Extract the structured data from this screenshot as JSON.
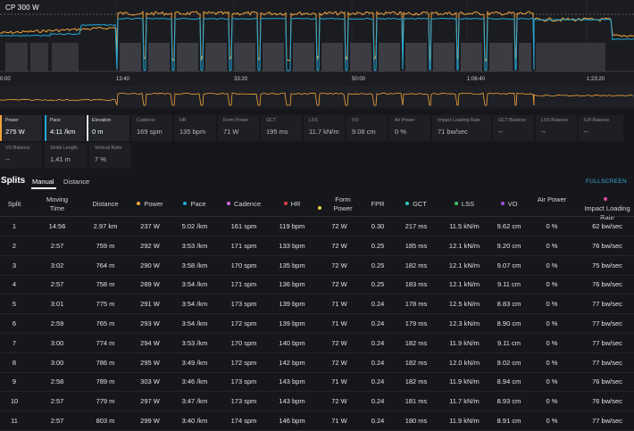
{
  "chart": {
    "cp_label": "CP 300 W",
    "time_ticks": [
      "0:00",
      "13:40",
      "33:20",
      "50:00",
      "1:06:40",
      "1:23:20"
    ],
    "colors": {
      "power": "#f0a43a",
      "pace": "#22a8d6",
      "ghost": "#4a4c52"
    }
  },
  "metrics": [
    {
      "label": "Power",
      "value": "275 W",
      "color": "#f0a43a",
      "active": true
    },
    {
      "label": "Pace",
      "value": "4:11 /km",
      "color": "#22a8d6",
      "active": true
    },
    {
      "label": "Elevation",
      "value": "0 m",
      "color": "#e6e6e6",
      "active": true
    },
    {
      "label": "Cadence",
      "value": "169 spm",
      "active": false
    },
    {
      "label": "HR",
      "value": "135 bpm",
      "active": false
    },
    {
      "label": "Form Power",
      "value": "71 W",
      "active": false
    },
    {
      "label": "GCT",
      "value": "195 ms",
      "active": false
    },
    {
      "label": "LSS",
      "value": "11.7 kN/m",
      "active": false
    },
    {
      "label": "VO",
      "value": "9.08 cm",
      "active": false
    },
    {
      "label": "Air Power",
      "value": "0 %",
      "active": false
    },
    {
      "label": "Impact Loading Rate",
      "value": "71 bw/sec",
      "active": false
    },
    {
      "label": "GCT Balance",
      "value": "--",
      "active": false
    },
    {
      "label": "LSS Balance",
      "value": "--",
      "active": false
    },
    {
      "label": "ILR Balance",
      "value": "--",
      "active": false
    },
    {
      "label": "VO Balance",
      "value": "--",
      "active": false
    },
    {
      "label": "Stride Length",
      "value": "1.41 m",
      "active": false
    },
    {
      "label": "Vertical Ratio",
      "value": "7 %",
      "active": false
    }
  ],
  "splits": {
    "title": "Splits",
    "tabs": [
      "Manual",
      "Distance"
    ],
    "fullscreen": "FULLSCREEN",
    "columns": [
      {
        "label": "Split"
      },
      {
        "label": "Moving Time"
      },
      {
        "label": "Distance"
      },
      {
        "label": "Power",
        "dot": "#f0a43a"
      },
      {
        "label": "Pace",
        "dot": "#22a8d6"
      },
      {
        "label": "Cadence",
        "dot": "#d46ad8"
      },
      {
        "label": "HR",
        "dot": "#e0414a"
      },
      {
        "label": "Form Power",
        "dot": "#e8d23a"
      },
      {
        "label": "FPR"
      },
      {
        "label": "GCT",
        "dot": "#36c3c3"
      },
      {
        "label": "LSS",
        "dot": "#3ec46a"
      },
      {
        "label": "VO",
        "dot": "#a24fe0"
      },
      {
        "label": "Air Power"
      },
      {
        "label": "Impact Loading Rate",
        "dot": "#e14aa2"
      }
    ],
    "rows": [
      [
        "1",
        "14:56",
        "2.97 km",
        "237 W",
        "5:02 /km",
        "161 spm",
        "119 bpm",
        "72 W",
        "0.30",
        "217 ms",
        "11.5 kN/m",
        "9.62 cm",
        "0 %",
        "62 bw/sec"
      ],
      [
        "2",
        "2:57",
        "759 m",
        "292 W",
        "3:53 /km",
        "171 spm",
        "133 bpm",
        "72 W",
        "0.25",
        "185 ms",
        "12.1 kN/m",
        "9.20 cm",
        "0 %",
        "76 bw/sec"
      ],
      [
        "3",
        "3:02",
        "764 m",
        "290 W",
        "3:58 /km",
        "170 spm",
        "135 bpm",
        "72 W",
        "0.25",
        "182 ms",
        "12.1 kN/m",
        "9.07 cm",
        "0 %",
        "75 bw/sec"
      ],
      [
        "4",
        "2:57",
        "758 m",
        "289 W",
        "3:54 /km",
        "171 spm",
        "136 bpm",
        "72 W",
        "0.25",
        "183 ms",
        "12.1 kN/m",
        "9.11 cm",
        "0 %",
        "76 bw/sec"
      ],
      [
        "5",
        "3:01",
        "775 m",
        "291 W",
        "3:54 /km",
        "173 spm",
        "139 bpm",
        "71 W",
        "0.24",
        "178 ms",
        "12.5 kN/m",
        "8.83 cm",
        "0 %",
        "77 bw/sec"
      ],
      [
        "6",
        "2:59",
        "765 m",
        "293 W",
        "3:54 /km",
        "172 spm",
        "139 bpm",
        "71 W",
        "0.24",
        "179 ms",
        "12.3 kN/m",
        "8.90 cm",
        "0 %",
        "77 bw/sec"
      ],
      [
        "7",
        "3:00",
        "774 m",
        "294 W",
        "3:53 /km",
        "170 spm",
        "140 bpm",
        "72 W",
        "0.24",
        "182 ms",
        "11.9 kN/m",
        "9.11 cm",
        "0 %",
        "77 bw/sec"
      ],
      [
        "8",
        "3:00",
        "786 m",
        "295 W",
        "3:49 /km",
        "172 spm",
        "142 bpm",
        "72 W",
        "0.24",
        "182 ms",
        "12.0 kN/m",
        "9.02 cm",
        "0 %",
        "77 bw/sec"
      ],
      [
        "9",
        "2:58",
        "789 m",
        "303 W",
        "3:46 /km",
        "173 spm",
        "143 bpm",
        "71 W",
        "0.24",
        "182 ms",
        "11.9 kN/m",
        "8.94 cm",
        "0 %",
        "76 bw/sec"
      ],
      [
        "10",
        "2:57",
        "779 m",
        "297 W",
        "3:47 /km",
        "173 spm",
        "143 bpm",
        "72 W",
        "0.24",
        "181 ms",
        "11.7 kN/m",
        "8.93 cm",
        "0 %",
        "76 bw/sec"
      ],
      [
        "11",
        "2:57",
        "803 m",
        "299 W",
        "3:40 /km",
        "174 spm",
        "146 bpm",
        "71 W",
        "0.24",
        "180 ms",
        "11.9 kN/m",
        "8.91 cm",
        "0 %",
        "77 bw/sec"
      ]
    ]
  }
}
